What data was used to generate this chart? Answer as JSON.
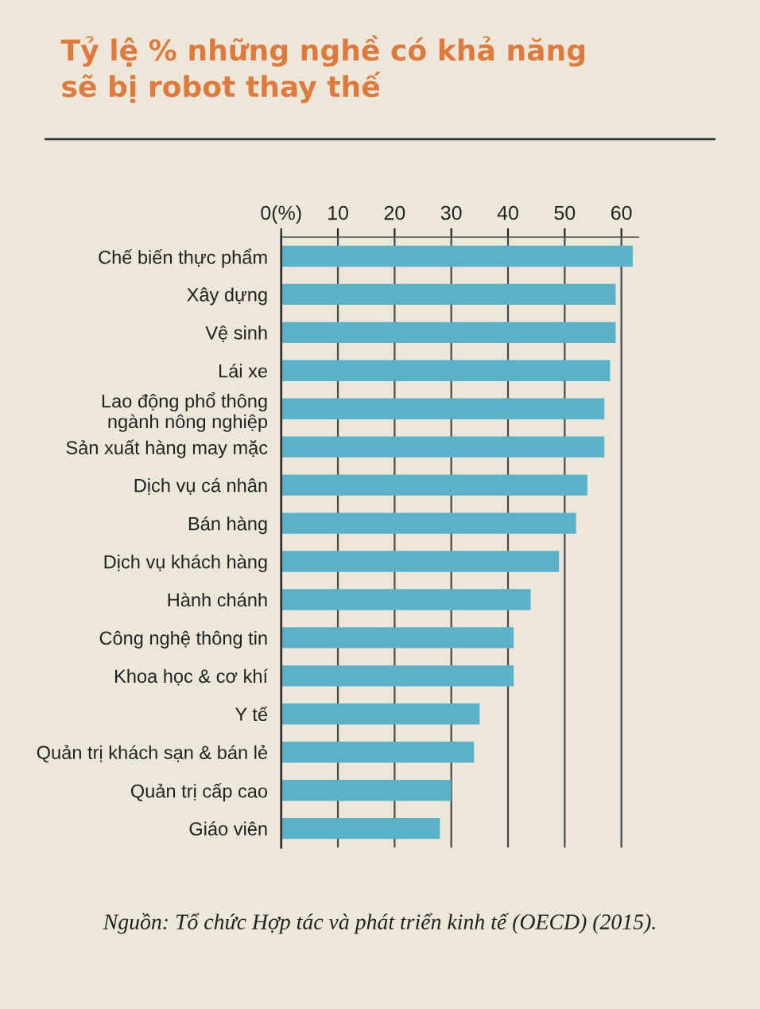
{
  "chart_data": {
    "type": "bar",
    "orientation": "horizontal",
    "title": "Tỷ lệ % những nghề có khả năng\nsẽ bị robot thay thế",
    "categories": [
      "Chế biến thực phẩm",
      "Xây dựng",
      "Vệ sinh",
      "Lái xe",
      "Lao động phổ thông\nngành nông nghiệp",
      "Sản xuất hàng may mặc",
      "Dịch vụ cá nhân",
      "Bán hàng",
      "Dịch vụ khách hàng",
      "Hành chánh",
      "Công nghệ thông tin",
      "Khoa học & cơ khí",
      "Y tế",
      "Quản trị khách sạn & bán lẻ",
      "Quản trị cấp cao",
      "Giáo viên"
    ],
    "values": [
      62,
      59,
      59,
      58,
      57,
      57,
      54,
      52,
      49,
      44,
      41,
      41,
      35,
      34,
      30,
      28
    ],
    "color": "#5ab2c8",
    "xlim": [
      0,
      63
    ],
    "xticks": [
      {
        "value": 0,
        "label": "0(%)"
      },
      10,
      20,
      30,
      40,
      50,
      60
    ],
    "grid": "x",
    "annotations": [
      "Nguồn: Tổ chức Hợp tác và phát triển kinh tế (OECD) (2015)."
    ]
  }
}
